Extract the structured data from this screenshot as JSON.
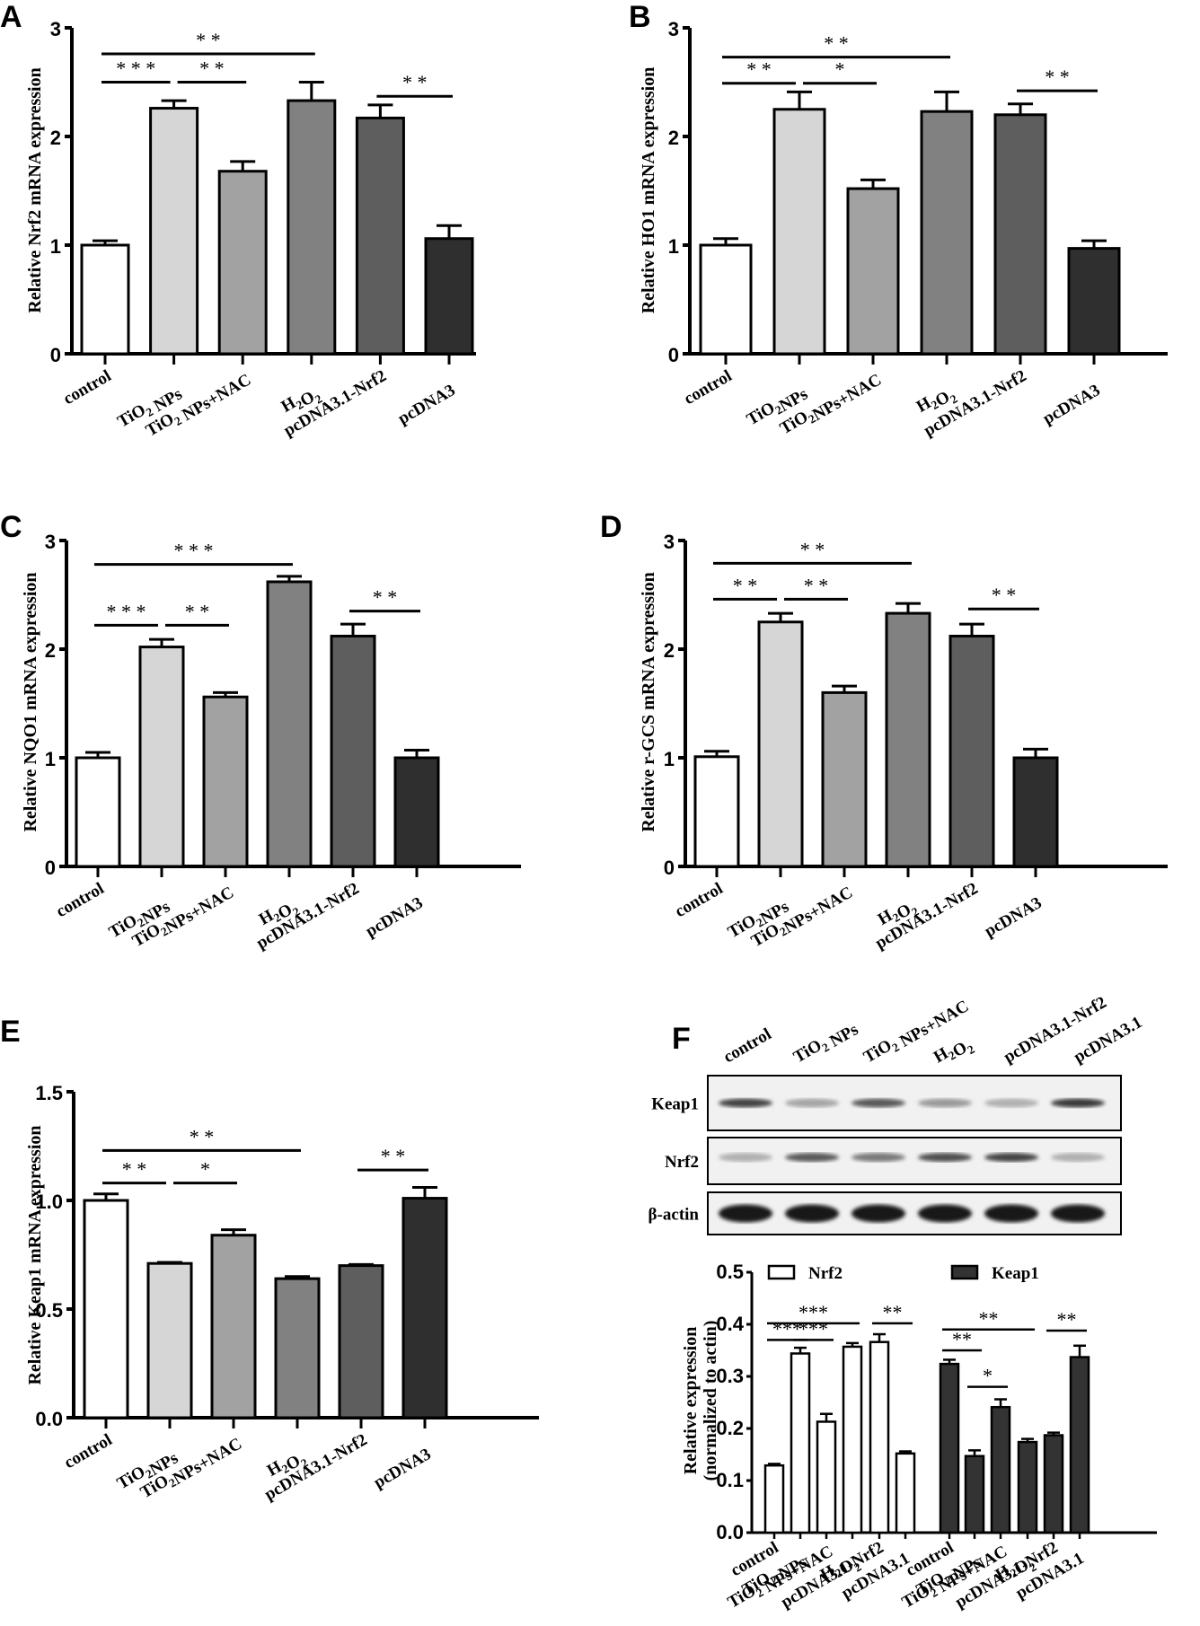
{
  "figure": {
    "panel_letters": [
      "A",
      "B",
      "C",
      "D",
      "E",
      "F"
    ]
  },
  "colors": {
    "control": "#ffffff",
    "tio2": "#d6d6d6",
    "nac": "#a2a2a2",
    "h2o2": "#818181",
    "nrf2": "#5e5e5e",
    "pcdna3": "#2f2f2f",
    "keap1_bar": "#333333"
  },
  "chart_data": [
    {
      "panel": "A",
      "type": "bar",
      "ylabel": "Relative Nrf2 mRNA expression",
      "ylim": [
        0,
        3
      ],
      "yticks": [
        "0",
        "1",
        "2",
        "3"
      ],
      "categories": [
        "control",
        "TiO2 NPs",
        "TiO2 NPs+NAC",
        "H2O2",
        "pcDNA3.1-Nrf2",
        "pcDNA3"
      ],
      "values": [
        1.0,
        2.26,
        1.68,
        2.33,
        2.17,
        1.06
      ],
      "errors": [
        0.04,
        0.07,
        0.09,
        0.17,
        0.12,
        0.12
      ],
      "significance": [
        {
          "from": 0,
          "to": 3,
          "label": "**",
          "y": 2.76
        },
        {
          "from": 0,
          "to": 1,
          "label": "***",
          "y": 2.5
        },
        {
          "from": 1,
          "to": 2,
          "label": "**",
          "y": 2.5
        },
        {
          "from": 4,
          "to": 5,
          "label": "**",
          "y": 2.37
        }
      ]
    },
    {
      "panel": "B",
      "type": "bar",
      "ylabel": "Relative HO1 mRNA expression",
      "ylim": [
        0,
        3
      ],
      "yticks": [
        "0",
        "1",
        "2",
        "3"
      ],
      "categories": [
        "control",
        "TiO2NPs",
        "TiO2NPs+NAC",
        "H2O2",
        "pcDNA3.1-Nrf2",
        "pcDNA3"
      ],
      "values": [
        1.0,
        2.25,
        1.52,
        2.23,
        2.2,
        0.97
      ],
      "errors": [
        0.06,
        0.16,
        0.08,
        0.18,
        0.1,
        0.07
      ],
      "significance": [
        {
          "from": 0,
          "to": 3,
          "label": "**",
          "y": 2.73
        },
        {
          "from": 0,
          "to": 1,
          "label": "**",
          "y": 2.49
        },
        {
          "from": 1,
          "to": 2,
          "label": "*",
          "y": 2.49
        },
        {
          "from": 4,
          "to": 5,
          "label": "**",
          "y": 2.42
        }
      ]
    },
    {
      "panel": "C",
      "type": "bar",
      "ylabel": "Relative NQO1 mRNA expression",
      "ylim": [
        0,
        3
      ],
      "yticks": [
        "0",
        "1",
        "2",
        "3"
      ],
      "categories": [
        "control",
        "TiO2NPs",
        "TiO2NPs+NAC",
        "H2O2",
        "pcDNA3.1-Nrf2",
        "pcDNA3"
      ],
      "values": [
        1.0,
        2.02,
        1.56,
        2.62,
        2.12,
        1.0
      ],
      "errors": [
        0.05,
        0.07,
        0.04,
        0.05,
        0.11,
        0.07
      ],
      "significance": [
        {
          "from": 0,
          "to": 3,
          "label": "***",
          "y": 2.78
        },
        {
          "from": 0,
          "to": 1,
          "label": "***",
          "y": 2.22
        },
        {
          "from": 1,
          "to": 2,
          "label": "**",
          "y": 2.22
        },
        {
          "from": 4,
          "to": 5,
          "label": "**",
          "y": 2.35
        }
      ]
    },
    {
      "panel": "D",
      "type": "bar",
      "ylabel": "Relative r-GCS mRNA expression",
      "ylim": [
        0,
        3
      ],
      "yticks": [
        "0",
        "1",
        "2",
        "3"
      ],
      "categories": [
        "control",
        "TiO2NPs",
        "TiO2NPs+NAC",
        "H2O2",
        "pcDNA3.1-Nrf2",
        "pcDNA3"
      ],
      "values": [
        1.01,
        2.25,
        1.6,
        2.33,
        2.12,
        1.0
      ],
      "errors": [
        0.05,
        0.08,
        0.06,
        0.09,
        0.11,
        0.08
      ],
      "significance": [
        {
          "from": 0,
          "to": 3,
          "label": "**",
          "y": 2.79
        },
        {
          "from": 0,
          "to": 1,
          "label": "**",
          "y": 2.46
        },
        {
          "from": 1,
          "to": 2,
          "label": "**",
          "y": 2.46
        },
        {
          "from": 4,
          "to": 5,
          "label": "**",
          "y": 2.37
        }
      ]
    },
    {
      "panel": "E",
      "type": "bar",
      "ylabel": "Relative Keap1 mRNA expression",
      "ylim": [
        0,
        1.5
      ],
      "yticks": [
        "0.0",
        "0.5",
        "1.0",
        "1.5"
      ],
      "categories": [
        "control",
        "TiO2NPs",
        "TiO2NPs+NAC",
        "H2O2",
        "pcDNA3.1-Nrf2",
        "pcDNA3"
      ],
      "values": [
        1.0,
        0.71,
        0.84,
        0.64,
        0.7,
        1.01
      ],
      "errors": [
        0.03,
        0.005,
        0.025,
        0.01,
        0.005,
        0.05
      ],
      "significance": [
        {
          "from": 0,
          "to": 3,
          "label": "**",
          "y": 1.23
        },
        {
          "from": 0,
          "to": 1,
          "label": "**",
          "y": 1.08
        },
        {
          "from": 1,
          "to": 2,
          "label": "*",
          "y": 1.08
        },
        {
          "from": 4,
          "to": 5,
          "label": "**",
          "y": 1.14
        }
      ]
    },
    {
      "panel": "F",
      "type": "bar",
      "ylabel": "Relative expression (normalized to actin)",
      "ylabel_lines": [
        "Relative expression",
        "(normalized to actin)"
      ],
      "ylim": [
        0,
        0.5
      ],
      "yticks": [
        "0.0",
        "0.1",
        "0.2",
        "0.3",
        "0.4",
        "0.5"
      ],
      "categories": [
        "control",
        "TiO2 NPs",
        "TiO2 NPs+NAC",
        "H2O2",
        "pcDNA3.1-Nrf2",
        "pcDNA3.1"
      ],
      "legend": {
        "position": "top",
        "entries": [
          "Nrf2",
          "Keap1"
        ]
      },
      "series": [
        {
          "name": "Nrf2",
          "values": [
            0.129,
            0.344,
            0.213,
            0.357,
            0.366,
            0.152
          ],
          "errors": [
            0.003,
            0.011,
            0.015,
            0.007,
            0.015,
            0.004
          ]
        },
        {
          "name": "Keap1",
          "values": [
            0.324,
            0.147,
            0.241,
            0.174,
            0.187,
            0.337
          ],
          "errors": [
            0.008,
            0.011,
            0.015,
            0.006,
            0.005,
            0.022
          ]
        }
      ],
      "significance": [
        {
          "series": 0,
          "from": 0,
          "to": 3,
          "label": "***",
          "y": 0.402
        },
        {
          "series": 0,
          "from": 0,
          "to": 1,
          "label": "***",
          "y": 0.37
        },
        {
          "series": 0,
          "from": 1,
          "to": 2,
          "label": "***",
          "y": 0.37
        },
        {
          "series": 0,
          "from": 4,
          "to": 5,
          "label": "**",
          "y": 0.402
        },
        {
          "series": 1,
          "from": 0,
          "to": 3,
          "label": "**",
          "y": 0.39
        },
        {
          "series": 1,
          "from": 0,
          "to": 1,
          "label": "**",
          "y": 0.35
        },
        {
          "series": 1,
          "from": 1,
          "to": 2,
          "label": "*",
          "y": 0.28
        },
        {
          "series": 1,
          "from": 4,
          "to": 5,
          "label": "**",
          "y": 0.388
        }
      ]
    }
  ],
  "western_blot": {
    "lanes": [
      "control",
      "TiO2 NPs",
      "TiO2 NPs+NAC",
      "H2O2",
      "pcDNA3.1-Nrf2",
      "pcDNA3.1"
    ],
    "rows": [
      {
        "label": "Keap1",
        "intensity": [
          0.8,
          0.35,
          0.7,
          0.4,
          0.3,
          0.85
        ]
      },
      {
        "label": "Nrf2",
        "intensity": [
          0.3,
          0.7,
          0.55,
          0.75,
          0.8,
          0.3
        ]
      },
      {
        "label": "β-actin",
        "intensity": [
          1,
          1,
          1,
          1,
          1,
          1
        ]
      }
    ]
  }
}
